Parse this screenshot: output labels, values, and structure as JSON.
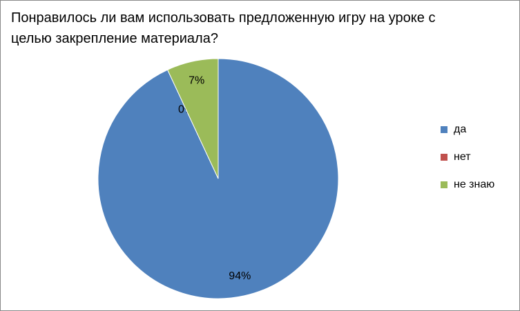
{
  "chart_data": {
    "type": "pie",
    "title": "Понравилось ли вам использовать предложенную игру на уроке с целью закрепление материала?",
    "categories": [
      "да",
      "нет",
      "не знаю"
    ],
    "values": [
      94,
      0,
      7
    ],
    "value_labels": [
      "94%",
      "0%",
      "7%"
    ],
    "colors": [
      "#4f81bd",
      "#c0504d",
      "#9bbb59"
    ],
    "legend": "right"
  }
}
